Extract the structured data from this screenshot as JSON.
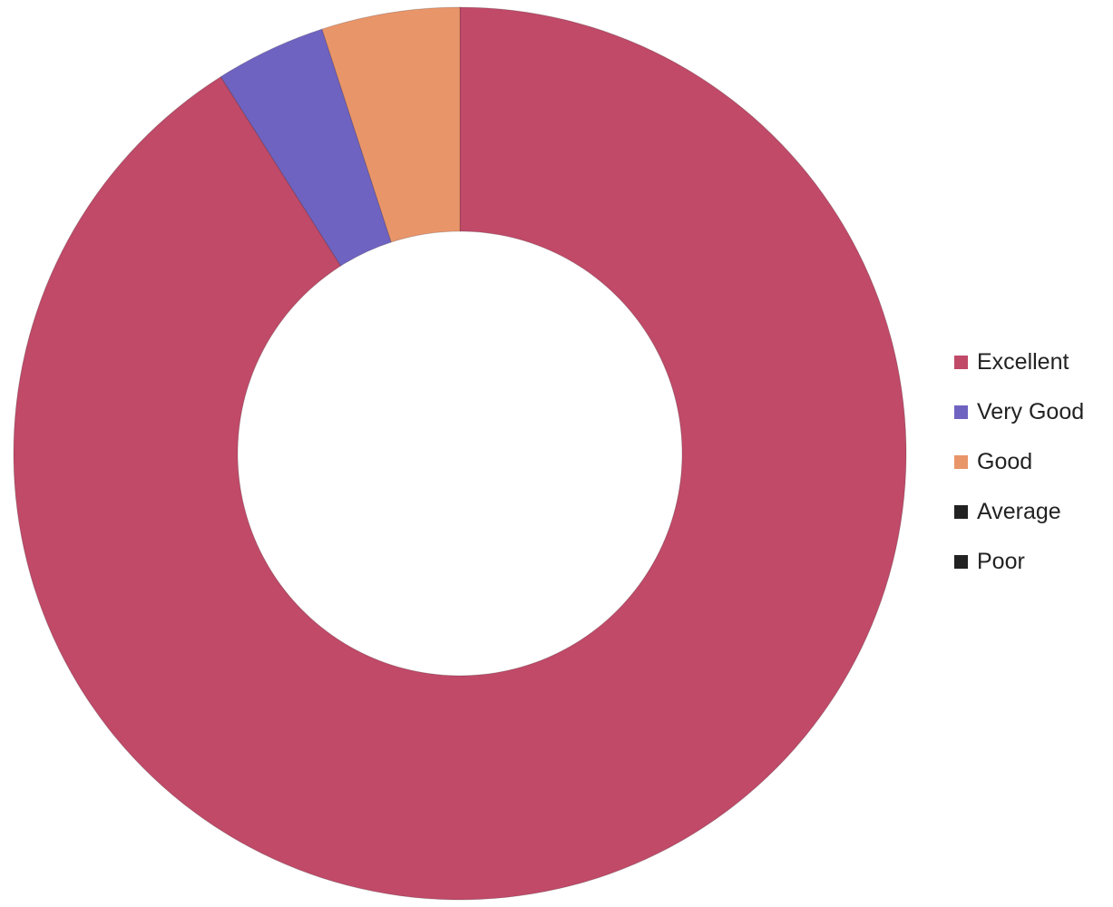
{
  "chart_data": {
    "type": "pie",
    "subtype": "donut",
    "categories": [
      "Excellent",
      "Very Good",
      "Good",
      "Average",
      "Poor"
    ],
    "values": [
      91,
      4,
      5,
      0,
      0
    ],
    "colors": [
      "#c04a68",
      "#6f63c1",
      "#e9956a",
      "#222222",
      "#222222"
    ],
    "legend_position": "right",
    "start_angle": "12 o'clock",
    "direction": "clockwise",
    "title": "",
    "data_labels": false
  }
}
